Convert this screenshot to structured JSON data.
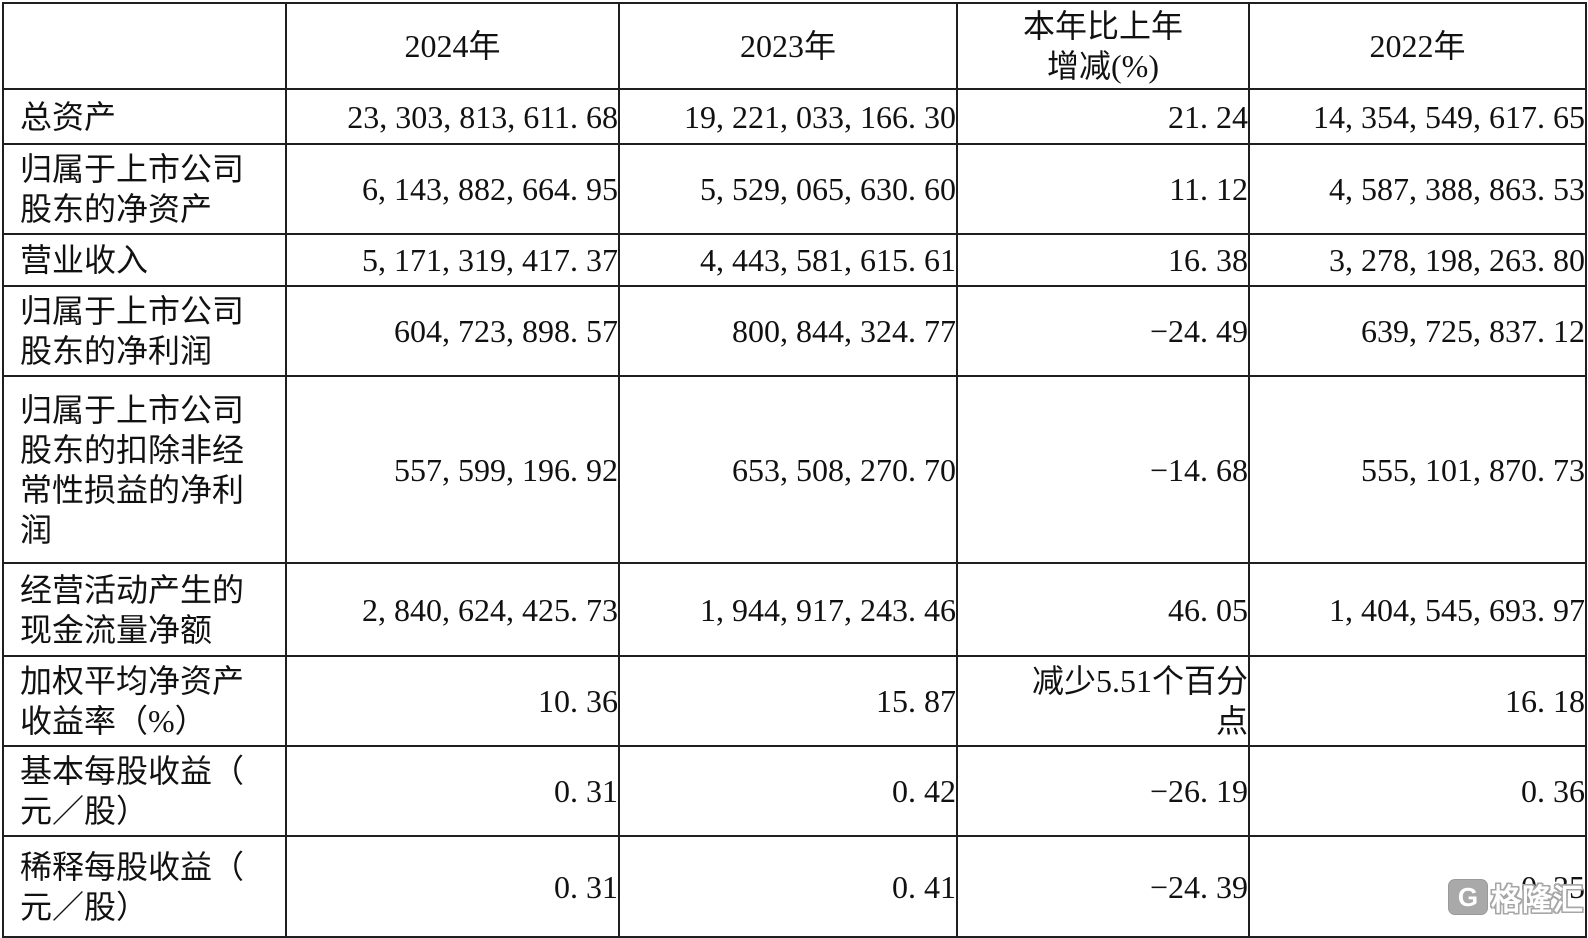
{
  "table": {
    "header": {
      "col_metric": "",
      "col_2024": "2024年",
      "col_2023": "2023年",
      "col_change_lines": [
        "本年比上年",
        "增减(%)"
      ],
      "col_change": "本年比上年增减(%)",
      "col_2022": "2022年"
    },
    "rows": [
      {
        "label": "总资产",
        "label_lines": [
          "总资产"
        ],
        "v2024": "23, 303, 813, 611. 68",
        "v2023": "19, 221, 033, 166. 30",
        "change": "21. 24",
        "v2022": "14, 354, 549, 617. 65"
      },
      {
        "label": "归属于上市公司股东的净资产",
        "label_lines": [
          "归属于上市公司",
          "股东的净资产"
        ],
        "v2024": "6, 143, 882, 664. 95",
        "v2023": "5, 529, 065, 630. 60",
        "change": "11. 12",
        "v2022": "4, 587, 388, 863. 53"
      },
      {
        "label": "营业收入",
        "label_lines": [
          "营业收入"
        ],
        "v2024": "5, 171, 319, 417. 37",
        "v2023": "4, 443, 581, 615. 61",
        "change": "16. 38",
        "v2022": "3, 278, 198, 263. 80"
      },
      {
        "label": "归属于上市公司股东的净利润",
        "label_lines": [
          "归属于上市公司",
          "股东的净利润"
        ],
        "v2024": "604, 723, 898. 57",
        "v2023": "800, 844, 324. 77",
        "change": "−24. 49",
        "v2022": "639, 725, 837. 12"
      },
      {
        "label": "归属于上市公司股东的扣除非经常性损益的净利润",
        "label_lines": [
          "归属于上市公司",
          "股东的扣除非经",
          "常性损益的净利",
          "润"
        ],
        "v2024": "557, 599, 196. 92",
        "v2023": "653, 508, 270. 70",
        "change": "−14. 68",
        "v2022": "555, 101, 870. 73"
      },
      {
        "label": "经营活动产生的现金流量净额",
        "label_lines": [
          "经营活动产生的",
          "现金流量净额"
        ],
        "v2024": "2, 840, 624, 425. 73",
        "v2023": "1, 944, 917, 243. 46",
        "change": "46. 05",
        "v2022": "1, 404, 545, 693. 97"
      },
      {
        "label": "加权平均净资产收益率（%）",
        "label_lines": [
          "加权平均净资产",
          "收益率（%）"
        ],
        "v2024": "10. 36",
        "v2023": "15. 87",
        "change": "减少5.51个百分点",
        "change_lines": [
          "减少5.51个百分",
          "点"
        ],
        "v2022": "16. 18"
      },
      {
        "label": "基本每股收益（元／股）",
        "label_lines": [
          "基本每股收益（",
          "元／股）"
        ],
        "v2024": "0. 31",
        "v2023": "0. 42",
        "change": "−26. 19",
        "v2022": "0. 36"
      },
      {
        "label": "稀释每股收益（元／股）",
        "label_lines": [
          "稀释每股收益（",
          "元／股）"
        ],
        "v2024": "0. 31",
        "v2023": "0. 41",
        "change": "−24. 39",
        "v2022": "0. 35"
      }
    ]
  },
  "watermark": {
    "logo_letter": "G",
    "brand": "格隆汇"
  },
  "colors": {
    "border": "#1f1f1f",
    "text": "#111111",
    "watermark_gray": "#a9a9a9",
    "background": "#ffffff"
  }
}
